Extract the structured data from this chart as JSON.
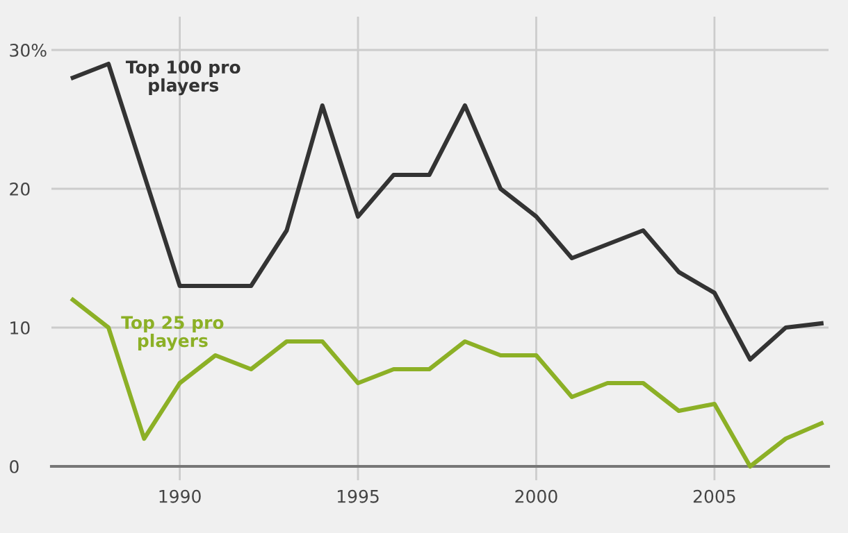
{
  "chart_data": {
    "type": "line",
    "x": [
      1987,
      1988,
      1989,
      1990,
      1991,
      1992,
      1993,
      1994,
      1995,
      1996,
      1997,
      1998,
      1999,
      2000,
      2001,
      2002,
      2003,
      2004,
      2005,
      2006,
      2007,
      2008
    ],
    "series": [
      {
        "name": "Top 100 pro players",
        "color": "#333333",
        "values": [
          28,
          29,
          21,
          13,
          13,
          13,
          17,
          26,
          18,
          21,
          21,
          26,
          20,
          18,
          15,
          16,
          17,
          14,
          12.5,
          7.7,
          10,
          10.3
        ]
      },
      {
        "name": "Top 25 pro players",
        "color": "#8cb026",
        "values": [
          12,
          10,
          2,
          6,
          8,
          7,
          9,
          9,
          6,
          7,
          7,
          9,
          8,
          8,
          5,
          6,
          6,
          4,
          4.5,
          0,
          2,
          3.1
        ]
      }
    ],
    "xlim": [
      1986.4,
      2008.2
    ],
    "xticks": [
      1990,
      1995,
      2000,
      2005
    ],
    "ylim": [
      -1,
      32.4
    ],
    "yticks": [
      0,
      10,
      20,
      {
        "value": 30,
        "label": "30%"
      }
    ],
    "grid": true,
    "legend": false,
    "marker": "none",
    "line_style": "solid"
  }
}
